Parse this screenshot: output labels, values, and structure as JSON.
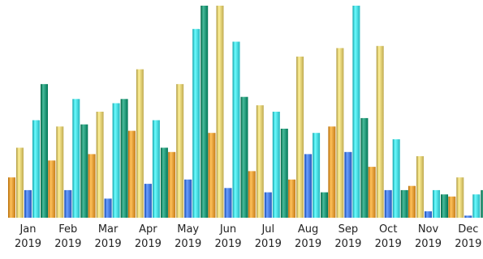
{
  "chart_data": {
    "type": "bar",
    "title": "",
    "xlabel": "",
    "ylabel": "",
    "ylim": [
      0,
      100
    ],
    "grid": false,
    "legend": "none",
    "categories": [
      {
        "month": "Jan",
        "year": "2019"
      },
      {
        "month": "Feb",
        "year": "2019"
      },
      {
        "month": "Mar",
        "year": "2019"
      },
      {
        "month": "Apr",
        "year": "2019"
      },
      {
        "month": "May",
        "year": "2019"
      },
      {
        "month": "Jun",
        "year": "2019"
      },
      {
        "month": "Jul",
        "year": "2019"
      },
      {
        "month": "Aug",
        "year": "2019"
      },
      {
        "month": "Sep",
        "year": "2019"
      },
      {
        "month": "Oct",
        "year": "2019"
      },
      {
        "month": "Nov",
        "year": "2019"
      },
      {
        "month": "Dec",
        "year": "2019"
      }
    ],
    "series": [
      {
        "color": "#e0952f",
        "values": [
          19,
          27,
          30,
          41,
          31,
          40,
          22,
          18,
          43,
          24,
          15,
          10
        ]
      },
      {
        "color": "#d9c46b",
        "values": [
          33,
          43,
          50,
          70,
          63,
          100,
          53,
          76,
          80,
          81,
          29,
          19
        ]
      },
      {
        "color": "#3d72d9",
        "values": [
          13,
          13,
          9,
          16,
          18,
          14,
          12,
          30,
          31,
          13,
          3,
          1
        ]
      },
      {
        "color": "#3fd0d8",
        "values": [
          46,
          56,
          54,
          46,
          89,
          83,
          50,
          40,
          100,
          37,
          13,
          11
        ]
      },
      {
        "color": "#1b8f6f",
        "values": [
          63,
          44,
          56,
          33,
          100,
          57,
          42,
          12,
          47,
          13,
          11,
          13
        ]
      }
    ]
  }
}
